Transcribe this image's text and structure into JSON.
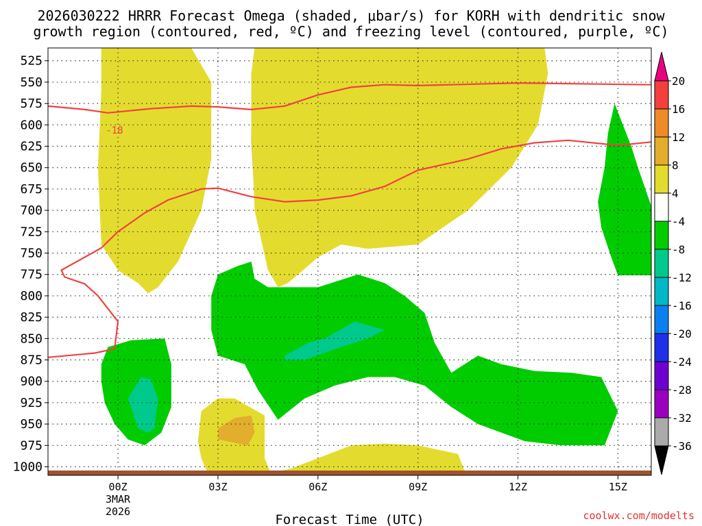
{
  "chart_data": {
    "type": "filled-contour",
    "title_line1": "2026030222 HRRR Forecast Omega (shaded, μbar/s) for KORH with dendritic snow",
    "title_line2": "growth region (contoured, red, ºC) and freezing level (contoured, purple, ºC)",
    "xlabel": "Forecast Time (UTC)",
    "ylabel": "",
    "credit": "coolwx.com/modelts",
    "x_ticks": [
      {
        "hour": 0,
        "label": "00Z"
      },
      {
        "hour": 3,
        "label": "03Z"
      },
      {
        "hour": 6,
        "label": "06Z"
      },
      {
        "hour": 9,
        "label": "09Z"
      },
      {
        "hour": 12,
        "label": "12Z"
      },
      {
        "hour": 15,
        "label": "15Z"
      }
    ],
    "date_label_line1": "3MAR",
    "date_label_line2": "2026",
    "xlim": [
      -2.1,
      16
    ],
    "ylim": [
      1010,
      510
    ],
    "y_ticks": [
      525,
      550,
      575,
      600,
      625,
      650,
      675,
      700,
      725,
      750,
      775,
      800,
      825,
      850,
      875,
      900,
      925,
      950,
      975,
      1000
    ],
    "colorbar": {
      "labels": [
        "20",
        "16",
        "12",
        "8",
        "4",
        "-4",
        "-8",
        "-12",
        "-16",
        "-20",
        "-24",
        "-28",
        "-32",
        "-36"
      ],
      "colors": [
        "#e8007e",
        "#f2403d",
        "#ee8a28",
        "#e3ad2e",
        "#e3dc2e",
        "#ffffff",
        "#00cc00",
        "#00c98c",
        "#00b8c8",
        "#0a80f0",
        "#1e30e8",
        "#7000d0",
        "#9a00c0",
        "#aaaaaa"
      ]
    },
    "isotherm_label": "-18",
    "series": [
      {
        "name": "dendritic-top-isotherm",
        "color": "#f24040",
        "points": [
          [
            -2.1,
            578
          ],
          [
            -1.0,
            582
          ],
          [
            -0.3,
            586
          ],
          [
            1.0,
            581
          ],
          [
            2.2,
            578
          ],
          [
            3.0,
            579
          ],
          [
            4.0,
            582
          ],
          [
            5.0,
            578
          ],
          [
            6.0,
            565
          ],
          [
            7.0,
            556
          ],
          [
            8.0,
            553
          ],
          [
            9.0,
            554
          ],
          [
            10.0,
            553
          ],
          [
            12.0,
            551
          ],
          [
            16,
            553
          ]
        ]
      },
      {
        "name": "dendritic-bottom-isotherm",
        "color": "#f24040",
        "points": [
          [
            -2.1,
            872
          ],
          [
            -0.7,
            867
          ],
          [
            -0.1,
            862
          ],
          [
            0.0,
            830
          ],
          [
            -0.6,
            800
          ],
          [
            -1.0,
            786
          ],
          [
            -1.6,
            778
          ],
          [
            -1.7,
            770
          ],
          [
            -1.1,
            757
          ],
          [
            -0.5,
            744
          ],
          [
            0.0,
            725
          ],
          [
            0.8,
            703
          ],
          [
            1.5,
            688
          ],
          [
            2.5,
            675
          ],
          [
            3.0,
            674
          ],
          [
            4.0,
            684
          ],
          [
            5.0,
            690
          ],
          [
            6.0,
            688
          ],
          [
            7.0,
            683
          ],
          [
            8.0,
            672
          ],
          [
            9.0,
            653
          ],
          [
            10.5,
            640
          ],
          [
            11.5,
            628
          ],
          [
            12.5,
            621
          ],
          [
            13.5,
            618
          ],
          [
            15.0,
            624
          ],
          [
            16,
            620
          ]
        ]
      }
    ],
    "regions": [
      {
        "name": "omega-8-12-west",
        "level": "8-12",
        "color": "#e3ad2e",
        "points": [
          [
            -0.4,
            510
          ],
          [
            0.8,
            510
          ],
          [
            1.8,
            560
          ],
          [
            2.1,
            620
          ],
          [
            2.2,
            700
          ],
          [
            1.8,
            760
          ],
          [
            1.2,
            785
          ],
          [
            0.9,
            790
          ],
          [
            0.5,
            780
          ],
          [
            0.0,
            760
          ],
          [
            -0.4,
            700
          ],
          [
            -0.5,
            600
          ]
        ]
      },
      {
        "name": "omega-8-12-central",
        "level": "8-12",
        "color": "#e3ad2e",
        "points": [
          [
            4.2,
            510
          ],
          [
            10.2,
            510
          ],
          [
            10.2,
            540
          ],
          [
            12.0,
            560
          ],
          [
            12.5,
            590
          ],
          [
            11.8,
            620
          ],
          [
            10.2,
            650
          ],
          [
            9.6,
            690
          ],
          [
            8.4,
            710
          ],
          [
            6.0,
            730
          ],
          [
            5.0,
            758
          ],
          [
            4.4,
            735
          ],
          [
            4.1,
            690
          ],
          [
            4.0,
            620
          ],
          [
            4.0,
            540
          ]
        ]
      },
      {
        "name": "omega-12-16-west",
        "level": "12-16",
        "color": "#ee8a28",
        "points": [
          [
            0.7,
            620
          ],
          [
            1.0,
            600
          ],
          [
            1.5,
            625
          ],
          [
            1.8,
            660
          ],
          [
            1.5,
            700
          ],
          [
            1.1,
            740
          ],
          [
            0.9,
            740
          ],
          [
            0.6,
            700
          ]
        ]
      },
      {
        "name": "omega-12-16-central",
        "level": "12-16",
        "color": "#ee8a28",
        "points": [
          [
            4.3,
            510
          ],
          [
            9.2,
            510
          ],
          [
            10.2,
            530
          ],
          [
            10.5,
            570
          ],
          [
            10.3,
            610
          ],
          [
            9.7,
            650
          ],
          [
            8.5,
            680
          ],
          [
            7.0,
            700
          ],
          [
            6.0,
            712
          ],
          [
            5.0,
            740
          ],
          [
            4.6,
            745
          ],
          [
            4.3,
            720
          ],
          [
            4.2,
            680
          ],
          [
            4.1,
            620
          ],
          [
            4.1,
            550
          ]
        ]
      },
      {
        "name": "omega-16-20-central",
        "level": "16-20",
        "color": "#f2403d",
        "points": [
          [
            4.6,
            510
          ],
          [
            6.9,
            510
          ],
          [
            7.4,
            565
          ],
          [
            8.2,
            530
          ],
          [
            9.1,
            510
          ],
          [
            9.8,
            510
          ],
          [
            9.6,
            560
          ],
          [
            9.2,
            610
          ],
          [
            9.1,
            640
          ],
          [
            8.0,
            610
          ],
          [
            7.0,
            600
          ],
          [
            6.6,
            610
          ],
          [
            6.1,
            640
          ],
          [
            5.5,
            690
          ],
          [
            4.9,
            705
          ],
          [
            4.7,
            700
          ],
          [
            4.4,
            680
          ],
          [
            4.5,
            620
          ]
        ]
      },
      {
        "name": "omega-over-20-central",
        "level": ">20",
        "color": "#e8007e",
        "points": [
          [
            4.8,
            510
          ],
          [
            6.3,
            510
          ],
          [
            6.4,
            560
          ],
          [
            6.0,
            620
          ],
          [
            5.6,
            650
          ],
          [
            5.4,
            660
          ],
          [
            4.9,
            672
          ],
          [
            4.7,
            660
          ],
          [
            4.8,
            600
          ]
        ]
      },
      {
        "name": "omega-4-8-west",
        "level": "4-8",
        "color": "#e3dc2e",
        "points": [
          [
            -0.5,
            510
          ],
          [
            2.2,
            510
          ],
          [
            2.8,
            550
          ],
          [
            2.8,
            640
          ],
          [
            2.5,
            700
          ],
          [
            1.8,
            760
          ],
          [
            1.2,
            790
          ],
          [
            0.9,
            797
          ],
          [
            0.6,
            785
          ],
          [
            0.0,
            770
          ],
          [
            -0.5,
            740
          ],
          [
            -0.6,
            650
          ],
          [
            -0.5,
            560
          ]
        ]
      },
      {
        "name": "omega-4-8-central",
        "level": "4-8",
        "color": "#e3dc2e",
        "points": [
          [
            4.1,
            510
          ],
          [
            12.8,
            510
          ],
          [
            12.9,
            540
          ],
          [
            12.6,
            600
          ],
          [
            11.8,
            650
          ],
          [
            10.5,
            700
          ],
          [
            9.0,
            740
          ],
          [
            7.5,
            745
          ],
          [
            6.7,
            740
          ],
          [
            6.0,
            755
          ],
          [
            5.1,
            785
          ],
          [
            4.8,
            790
          ],
          [
            4.5,
            770
          ],
          [
            4.1,
            700
          ],
          [
            4.0,
            600
          ],
          [
            4.0,
            540
          ]
        ]
      },
      {
        "name": "omega-4-8-south-west",
        "level": "4-8",
        "color": "#e3dc2e",
        "points": [
          [
            2.4,
            970
          ],
          [
            2.5,
            935
          ],
          [
            3.0,
            920
          ],
          [
            3.5,
            920
          ],
          [
            4.4,
            940
          ],
          [
            4.4,
            990
          ],
          [
            4.5,
            1000
          ],
          [
            4.6,
            1008
          ],
          [
            2.7,
            1008
          ],
          [
            2.5,
            990
          ]
        ]
      },
      {
        "name": "omega-8-12-south",
        "level": "8-12",
        "color": "#e3ad2e",
        "points": [
          [
            3.0,
            955
          ],
          [
            3.5,
            943
          ],
          [
            4.0,
            940
          ],
          [
            4.1,
            960
          ],
          [
            3.9,
            975
          ],
          [
            3.5,
            972
          ],
          [
            3.0,
            968
          ]
        ]
      },
      {
        "name": "omega-4-8-south-central",
        "level": "4-8",
        "color": "#e3dc2e",
        "points": [
          [
            4.5,
            1008
          ],
          [
            5.2,
            1002
          ],
          [
            6.0,
            990
          ],
          [
            7.0,
            975
          ],
          [
            8.0,
            973
          ],
          [
            9.0,
            975
          ],
          [
            10.2,
            985
          ],
          [
            10.4,
            1005
          ],
          [
            10.5,
            1008
          ]
        ]
      },
      {
        "name": "omega-neg-4-8-lower",
        "level": "-4 to -8",
        "color": "#00cc00",
        "points": [
          [
            2.8,
            800
          ],
          [
            3.0,
            775
          ],
          [
            3.6,
            765
          ],
          [
            4.0,
            760
          ],
          [
            4.1,
            780
          ],
          [
            4.5,
            790
          ],
          [
            5.2,
            790
          ],
          [
            6.0,
            790
          ],
          [
            6.8,
            780
          ],
          [
            7.2,
            775
          ],
          [
            8.0,
            785
          ],
          [
            8.6,
            800
          ],
          [
            9.2,
            820
          ],
          [
            9.5,
            855
          ],
          [
            10.0,
            890
          ],
          [
            10.8,
            870
          ],
          [
            11.5,
            880
          ],
          [
            12.5,
            888
          ],
          [
            13.6,
            890
          ],
          [
            14.5,
            895
          ],
          [
            15.0,
            935
          ],
          [
            14.6,
            975
          ],
          [
            13.3,
            975
          ],
          [
            12.2,
            970
          ],
          [
            10.8,
            950
          ],
          [
            10.0,
            930
          ],
          [
            9.2,
            905
          ],
          [
            8.3,
            895
          ],
          [
            7.5,
            895
          ],
          [
            6.5,
            905
          ],
          [
            5.6,
            920
          ],
          [
            4.8,
            945
          ],
          [
            4.2,
            910
          ],
          [
            3.8,
            880
          ],
          [
            3.0,
            870
          ],
          [
            2.8,
            840
          ]
        ]
      },
      {
        "name": "omega-neg-4-8-southwest",
        "level": "-4 to -8",
        "color": "#00cc00",
        "points": [
          [
            -0.5,
            880
          ],
          [
            -0.3,
            860
          ],
          [
            0.4,
            852
          ],
          [
            1.4,
            850
          ],
          [
            1.6,
            880
          ],
          [
            1.6,
            930
          ],
          [
            1.3,
            960
          ],
          [
            0.8,
            975
          ],
          [
            0.3,
            968
          ],
          [
            -0.1,
            950
          ],
          [
            -0.4,
            925
          ],
          [
            -0.5,
            900
          ]
        ]
      },
      {
        "name": "omega-neg-4-8-east",
        "level": "-4 to -8",
        "color": "#00cc00",
        "points": [
          [
            14.9,
            575
          ],
          [
            15.4,
            625
          ],
          [
            15.6,
            650
          ],
          [
            16.0,
            695
          ],
          [
            16.0,
            776
          ],
          [
            15.0,
            776
          ],
          [
            14.8,
            755
          ],
          [
            14.5,
            720
          ],
          [
            14.4,
            690
          ],
          [
            14.6,
            650
          ],
          [
            14.7,
            610
          ]
        ]
      },
      {
        "name": "omega-neg-8-12-lower",
        "level": "-8 to -12",
        "color": "#00c98c",
        "points": [
          [
            5.0,
            870
          ],
          [
            5.7,
            855
          ],
          [
            6.2,
            850
          ],
          [
            7.1,
            830
          ],
          [
            8.0,
            840
          ],
          [
            7.5,
            850
          ],
          [
            6.7,
            860
          ],
          [
            5.6,
            875
          ],
          [
            5.0,
            875
          ]
        ]
      },
      {
        "name": "omega-neg-8-12-southwest",
        "level": "-8 to -12",
        "color": "#00c98c",
        "points": [
          [
            0.3,
            920
          ],
          [
            0.7,
            895
          ],
          [
            1.0,
            898
          ],
          [
            1.2,
            920
          ],
          [
            1.1,
            955
          ],
          [
            0.9,
            960
          ],
          [
            0.6,
            955
          ]
        ]
      }
    ]
  }
}
